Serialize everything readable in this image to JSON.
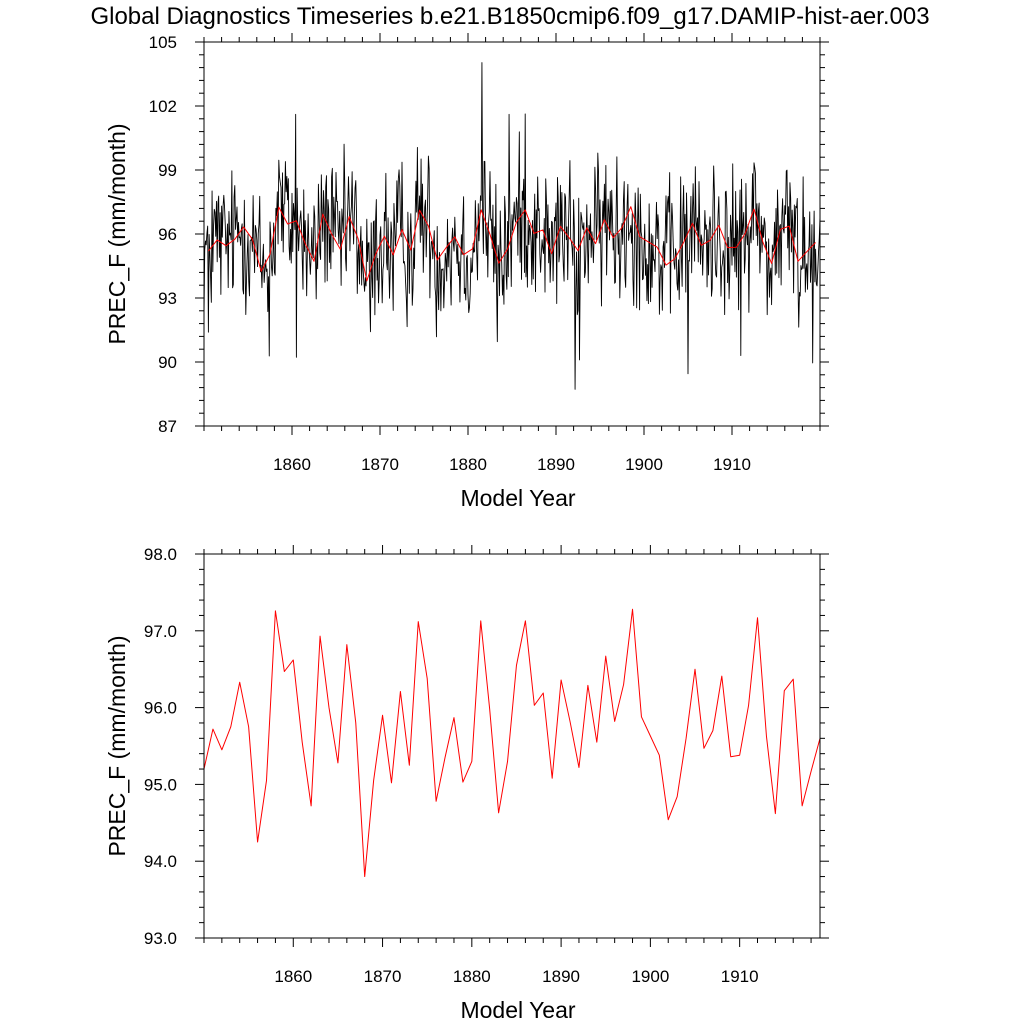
{
  "page_title": "Global Diagnostics Timeseries b.e21.B1850cmip6.f09_g17.DAMIP-hist-aer.003",
  "chart_data": [
    {
      "type": "line",
      "panel": "monthly",
      "title": "",
      "xlabel": "Model Year",
      "ylabel": "PREC_F (mm/month)",
      "xlim": [
        1850,
        1920
      ],
      "ylim": [
        87,
        105
      ],
      "xticks": [
        1860,
        1870,
        1880,
        1890,
        1900,
        1910
      ],
      "yticks": [
        87,
        90,
        93,
        96,
        99,
        102,
        105
      ],
      "ytick_labels": [
        "87",
        "90",
        "93",
        "96",
        "99",
        "102",
        "105"
      ],
      "grid": false,
      "legend": "none",
      "series": [
        {
          "color": "#000000",
          "resolution": "monthly",
          "anomalies": [
            [
              1850.5,
              -3.8
            ],
            [
              1850.9,
              2.6
            ],
            [
              1855.1,
              -2.2
            ],
            [
              1857.4,
              -4.7
            ],
            [
              1858.5,
              2.2
            ],
            [
              1860.4,
              5.0
            ],
            [
              1860.5,
              -6.4
            ],
            [
              1868.9,
              -2.9
            ],
            [
              1871.5,
              -2.6
            ],
            [
              1881.6,
              7.0
            ],
            [
              1883.3,
              -3.9
            ],
            [
              1884.7,
              6.1
            ],
            [
              1886.5,
              4.5
            ],
            [
              1892.2,
              -6.7
            ],
            [
              1892.7,
              -5.3
            ],
            [
              1896.9,
              3.6
            ],
            [
              1905.0,
              -6.6
            ],
            [
              1911.0,
              -5.4
            ],
            [
              1918.1,
              3.7
            ],
            [
              1919.2,
              -5.5
            ]
          ]
        },
        {
          "color": "#ff0000",
          "resolution": "annual",
          "ref": "annual"
        }
      ]
    },
    {
      "type": "line",
      "panel": "annual",
      "title": "",
      "xlabel": "Model Year",
      "ylabel": "PREC_F (mm/month)",
      "xlim": [
        1850,
        1919
      ],
      "ylim": [
        93,
        98
      ],
      "xticks": [
        1860,
        1870,
        1880,
        1890,
        1900,
        1910
      ],
      "yticks": [
        93,
        94,
        95,
        96,
        97,
        98
      ],
      "ytick_labels": [
        "93.0",
        "94.0",
        "95.0",
        "96.0",
        "97.0",
        "98.0"
      ],
      "grid": false,
      "legend": "none",
      "series": [
        {
          "color": "#ff0000",
          "x": [
            1850,
            1851,
            1852,
            1853,
            1854,
            1855,
            1856,
            1857,
            1858,
            1859,
            1860,
            1861,
            1862,
            1863,
            1864,
            1865,
            1866,
            1867,
            1868,
            1869,
            1870,
            1871,
            1872,
            1873,
            1874,
            1875,
            1876,
            1877,
            1878,
            1879,
            1880,
            1881,
            1882,
            1883,
            1884,
            1885,
            1886,
            1887,
            1888,
            1889,
            1890,
            1891,
            1892,
            1893,
            1894,
            1895,
            1896,
            1897,
            1898,
            1899,
            1900,
            1901,
            1902,
            1903,
            1904,
            1905,
            1906,
            1907,
            1908,
            1909,
            1910,
            1911,
            1912,
            1913,
            1914,
            1915,
            1916,
            1917,
            1918,
            1919
          ],
          "values": [
            95.2,
            95.72,
            95.45,
            95.75,
            96.33,
            95.75,
            94.25,
            95.05,
            97.26,
            96.47,
            96.62,
            95.55,
            94.72,
            96.93,
            96.0,
            95.28,
            96.82,
            95.8,
            93.8,
            95.05,
            95.9,
            95.02,
            96.21,
            95.25,
            97.12,
            96.38,
            94.78,
            95.35,
            95.87,
            95.03,
            95.3,
            97.13,
            95.98,
            94.63,
            95.3,
            96.55,
            97.13,
            96.03,
            96.19,
            95.08,
            96.36,
            95.82,
            95.22,
            96.29,
            95.55,
            96.67,
            95.82,
            96.3,
            97.28,
            95.88,
            95.63,
            95.38,
            94.54,
            94.84,
            95.6,
            96.5,
            95.47,
            95.7,
            96.41,
            95.36,
            95.38,
            96.03,
            97.17,
            95.63,
            94.62,
            96.22,
            96.37,
            94.72,
            95.17,
            95.6
          ]
        }
      ]
    }
  ]
}
